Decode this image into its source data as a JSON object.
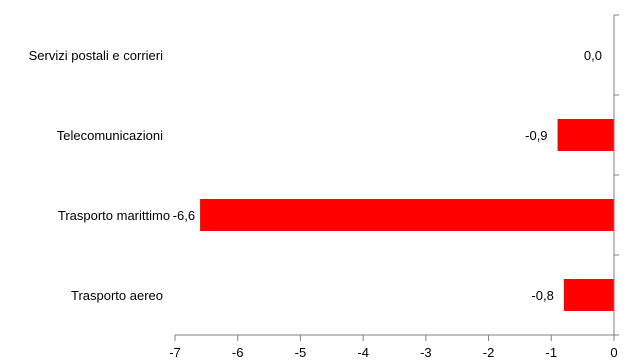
{
  "chart_data": {
    "type": "bar",
    "orientation": "horizontal",
    "categories": [
      "Servizi postali e corrieri",
      "Telecomunicazioni",
      "Trasporto marittimo",
      "Trasporto aereo"
    ],
    "values": [
      0.0,
      -0.9,
      -6.6,
      -0.8
    ],
    "value_labels": [
      "0,0",
      "-0,9",
      "-6,6",
      "-0,8"
    ],
    "xlim": [
      -7,
      0
    ],
    "xticks": [
      -7,
      -6,
      -5,
      -4,
      -3,
      -2,
      -1,
      0
    ],
    "grid": false,
    "legend": "none",
    "bar_color": "#ff0000"
  }
}
